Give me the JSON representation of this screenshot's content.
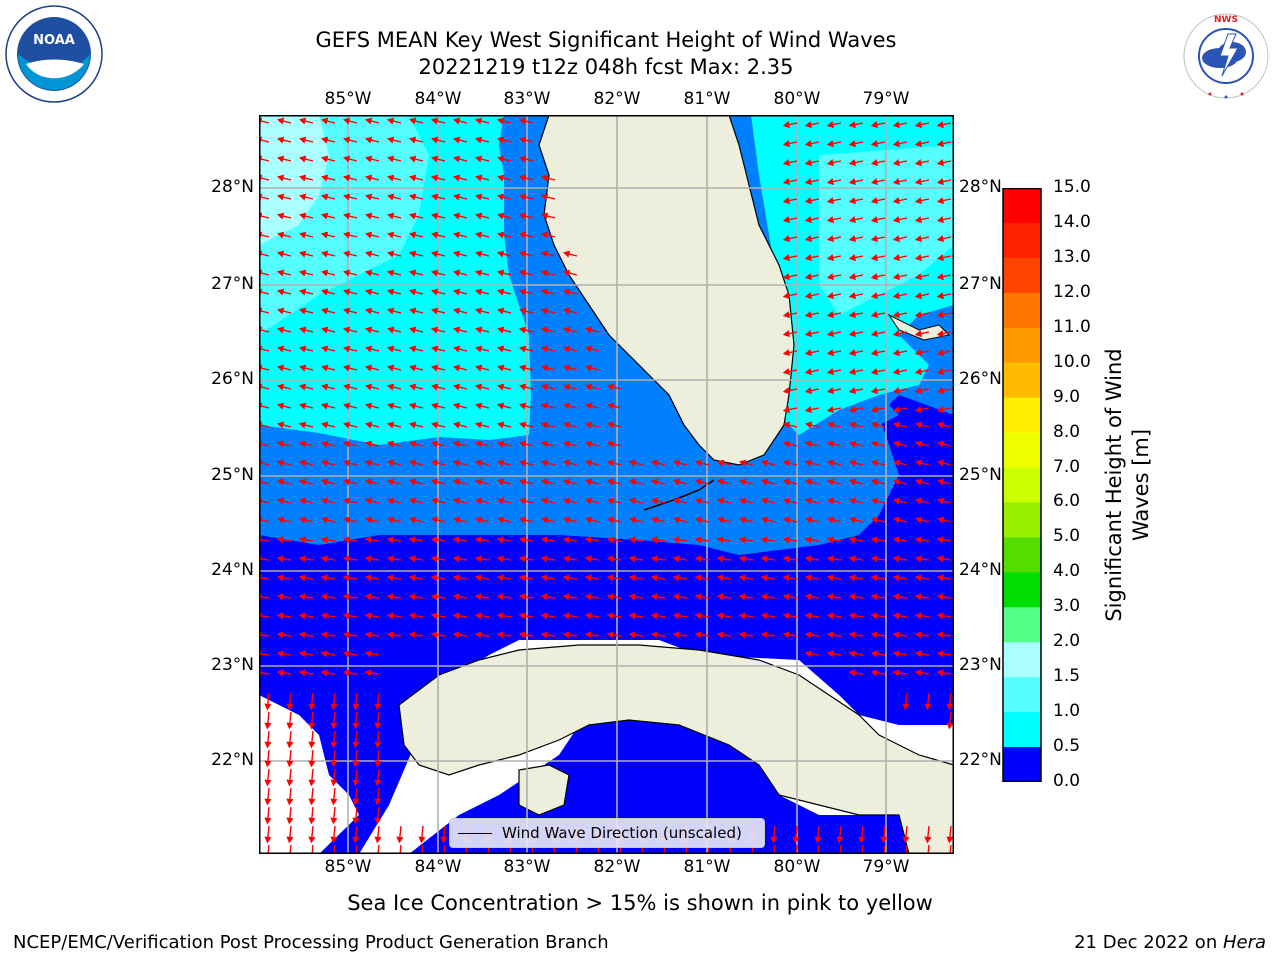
{
  "title_line1": "GEFS MEAN Key West Significant Height of Wind Waves",
  "title_line2": "20221219 t12z 048h fcst   Max: 2.35",
  "lon_ticks": [
    "85°W",
    "84°W",
    "83°W",
    "82°W",
    "81°W",
    "80°W",
    "79°W"
  ],
  "lat_ticks": [
    "28°N",
    "27°N",
    "26°N",
    "25°N",
    "24°N",
    "23°N",
    "22°N"
  ],
  "colorbar": {
    "label_line1": "Significant Height of Wind",
    "label_line2": "Waves [m]",
    "ticks": [
      "15.0",
      "14.0",
      "13.0",
      "12.0",
      "11.0",
      "10.0",
      "9.0",
      "8.0",
      "7.0",
      "6.0",
      "5.0",
      "4.0",
      "3.0",
      "2.0",
      "1.5",
      "1.0",
      "0.5",
      "0.0"
    ],
    "colors": [
      "#ff0000",
      "#ff2200",
      "#ff4400",
      "#ff7700",
      "#ff9900",
      "#ffbb00",
      "#ffee00",
      "#eeff00",
      "#ccff00",
      "#99ee00",
      "#55dd00",
      "#00dd00",
      "#55ff88",
      "#aaffff",
      "#55ffff",
      "#00ffff",
      "#0080ff",
      "#0000ff"
    ]
  },
  "legend": {
    "label": "Wind Wave Direction (unscaled)"
  },
  "note": "Sea Ice Concentration > 15% is shown in pink to yellow",
  "footer_left": "NCEP/EMC/Verification Post Processing Product Generation Branch",
  "footer_right_date": "21 Dec 2022 on ",
  "footer_right_host": "Hera",
  "logos": {
    "noaa": "NOAA",
    "nws": "NATIONAL WEATHER SERVICE"
  },
  "colors": {
    "land": "#eeeedc",
    "arrow": "#ff0000",
    "grid": "#b0b0b0"
  }
}
